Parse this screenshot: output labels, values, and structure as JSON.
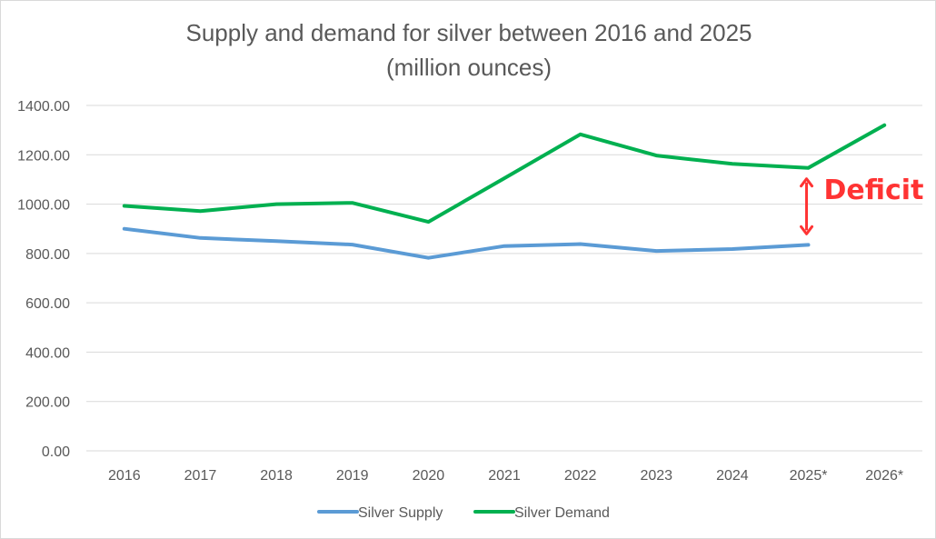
{
  "chart_data": {
    "type": "line",
    "title": "Supply and demand for silver between 2016 and 2025",
    "subtitle": "(million ounces)",
    "categories": [
      "2016",
      "2017",
      "2018",
      "2019",
      "2020",
      "2021",
      "2022",
      "2023",
      "2024",
      "2025*",
      "2026*"
    ],
    "ylim": [
      0,
      1400
    ],
    "yticks": [
      "0.00",
      "200.00",
      "400.00",
      "600.00",
      "800.00",
      "1000.00",
      "1200.00",
      "1400.00"
    ],
    "grid": true,
    "legend_position": "bottom",
    "series": [
      {
        "name": "Silver Supply",
        "color": "#5b9bd5",
        "values": [
          900,
          863,
          850,
          836,
          782,
          830,
          838,
          810,
          818,
          835,
          null
        ]
      },
      {
        "name": "Silver Demand",
        "color": "#00b050",
        "values": [
          993,
          972,
          1000,
          1005,
          928,
          1105,
          1283,
          1197,
          1163,
          1147,
          1320
        ]
      }
    ],
    "annotation": {
      "text": "Deficit",
      "category": "2025*",
      "color": "#ff3333"
    }
  }
}
